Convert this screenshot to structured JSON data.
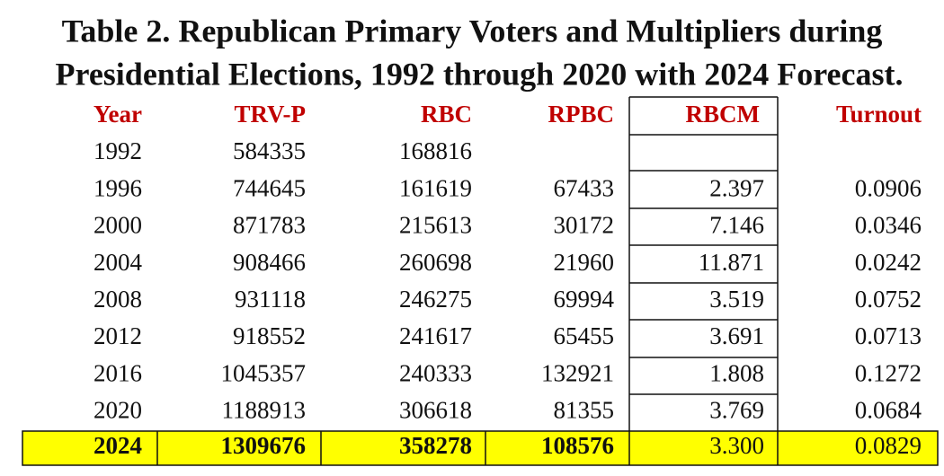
{
  "table": {
    "title": [
      "Table 2. Republican Primary Voters and Multipliers during",
      "Presidential Elections, 1992 through 2020 with 2024 Forecast."
    ],
    "columns": [
      "Year",
      "TRV-P",
      "RBC",
      "RPBC",
      "RBCM",
      "Turnout"
    ],
    "rows": [
      [
        "1992",
        "584335",
        "168816"
      ],
      [
        "1996",
        "744645",
        "161619",
        "67433",
        "2.397",
        "0.0906"
      ],
      [
        "2000",
        "871783",
        "215613",
        "30172",
        "7.146",
        "0.0346"
      ],
      [
        "2004",
        "908466",
        "260698",
        "21960",
        "11.871",
        "0.0242"
      ],
      [
        "2008",
        "931118",
        "246275",
        "69994",
        "3.519",
        "0.0752"
      ],
      [
        "2012",
        "918552",
        "241617",
        "65455",
        "3.691",
        "0.0713"
      ],
      [
        "2016",
        "1045357",
        "240333",
        "132921",
        "1.808",
        "0.1272"
      ],
      [
        "2020",
        "1188913",
        "306618",
        "81355",
        "3.769",
        "0.0684"
      ],
      [
        "2024",
        "1309676",
        "358278",
        "108576",
        "3.300",
        "0.0829"
      ]
    ]
  }
}
